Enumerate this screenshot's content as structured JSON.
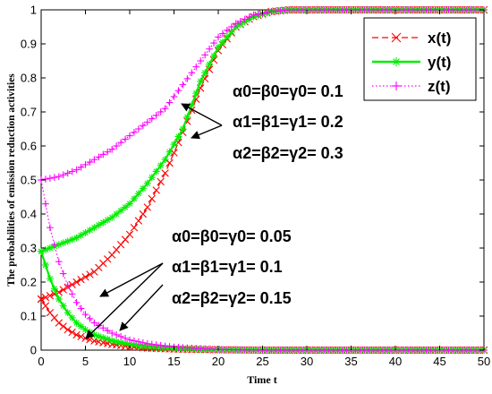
{
  "chart_data": {
    "type": "line",
    "xlabel": "Time t",
    "ylabel": "The probabilities of emission reduction activities",
    "xlim": [
      0,
      50
    ],
    "ylim": [
      0,
      1
    ],
    "xticks": [
      0,
      5,
      10,
      15,
      20,
      25,
      30,
      35,
      40,
      45,
      50
    ],
    "yticks": [
      0,
      0.1,
      0.2,
      0.3,
      0.4,
      0.5,
      0.6,
      0.7,
      0.8,
      0.9,
      1
    ],
    "xtick_labels": [
      "0",
      "5",
      "10",
      "15",
      "20",
      "25",
      "30",
      "35",
      "40",
      "45",
      "50"
    ],
    "ytick_labels": [
      "0",
      "0.1",
      "0.2",
      "0.3",
      "0.4",
      "0.5",
      "0.6",
      "0.7",
      "0.8",
      "0.9",
      "1"
    ],
    "grid": false,
    "legend_position": "top-right",
    "legend": [
      "x(t)",
      "y(t)",
      "z(t)"
    ],
    "annotations": {
      "group_high": [
        "α0=β0=γ0= 0.1",
        "α1=β1=γ1= 0.2",
        "α2=β2=γ2= 0.3"
      ],
      "group_low": [
        "α0=β0=γ0= 0.05",
        "α1=β1=γ1= 0.1",
        "α2=β2=γ2= 0.15"
      ]
    },
    "series": [
      {
        "name": "x(t)",
        "color": "#ff0000",
        "marker": "x-mark",
        "linestyle": "dashed",
        "group": "high",
        "x": [
          0,
          2,
          4,
          6,
          8,
          10,
          12,
          14,
          16,
          18,
          20,
          22,
          24,
          26,
          28,
          30,
          35,
          40,
          45,
          50
        ],
        "values": [
          0.15,
          0.17,
          0.2,
          0.23,
          0.28,
          0.34,
          0.42,
          0.52,
          0.64,
          0.77,
          0.88,
          0.95,
          0.98,
          0.995,
          1,
          1,
          1,
          1,
          1,
          1
        ]
      },
      {
        "name": "y(t)",
        "color": "#00ee00",
        "marker": "asterisk",
        "linestyle": "solid",
        "group": "high",
        "x": [
          0,
          2,
          4,
          6,
          8,
          10,
          12,
          14,
          16,
          18,
          20,
          22,
          24,
          26,
          28,
          30,
          35,
          40,
          45,
          50
        ],
        "values": [
          0.29,
          0.31,
          0.33,
          0.36,
          0.39,
          0.43,
          0.49,
          0.56,
          0.65,
          0.79,
          0.89,
          0.95,
          0.98,
          0.995,
          1,
          1,
          1,
          1,
          1,
          1
        ]
      },
      {
        "name": "z(t)",
        "color": "#ff00ff",
        "marker": "plus",
        "linestyle": "dotted",
        "group": "high",
        "x": [
          0,
          2,
          4,
          6,
          8,
          10,
          12,
          14,
          16,
          18,
          20,
          22,
          24,
          26,
          28,
          30,
          35,
          40,
          45,
          50
        ],
        "values": [
          0.5,
          0.51,
          0.53,
          0.56,
          0.59,
          0.63,
          0.67,
          0.71,
          0.78,
          0.85,
          0.92,
          0.96,
          0.985,
          0.995,
          1,
          1,
          1,
          1,
          1,
          1
        ]
      },
      {
        "name": "x(t)",
        "color": "#ff0000",
        "marker": "x-mark",
        "linestyle": "dashed",
        "group": "low",
        "x": [
          0,
          1,
          2,
          3,
          4,
          5,
          6,
          8,
          10,
          12,
          15,
          20,
          25,
          30,
          40,
          50
        ],
        "values": [
          0.15,
          0.11,
          0.08,
          0.06,
          0.045,
          0.035,
          0.027,
          0.017,
          0.01,
          0.006,
          0.003,
          0.001,
          0,
          0,
          0,
          0
        ]
      },
      {
        "name": "y(t)",
        "color": "#00ee00",
        "marker": "asterisk",
        "linestyle": "solid",
        "group": "low",
        "x": [
          0,
          1,
          2,
          3,
          4,
          5,
          6,
          8,
          10,
          12,
          15,
          20,
          25,
          30,
          40,
          50
        ],
        "values": [
          0.29,
          0.21,
          0.15,
          0.11,
          0.08,
          0.06,
          0.045,
          0.028,
          0.017,
          0.01,
          0.005,
          0.001,
          0,
          0,
          0,
          0
        ]
      },
      {
        "name": "z(t)",
        "color": "#ff00ff",
        "marker": "plus",
        "linestyle": "dotted",
        "group": "low",
        "x": [
          0,
          1,
          2,
          3,
          4,
          5,
          6,
          8,
          10,
          12,
          15,
          20,
          25,
          30,
          40,
          50
        ],
        "values": [
          0.5,
          0.36,
          0.26,
          0.19,
          0.14,
          0.105,
          0.08,
          0.05,
          0.03,
          0.019,
          0.009,
          0.002,
          0,
          0,
          0,
          0
        ]
      }
    ]
  }
}
